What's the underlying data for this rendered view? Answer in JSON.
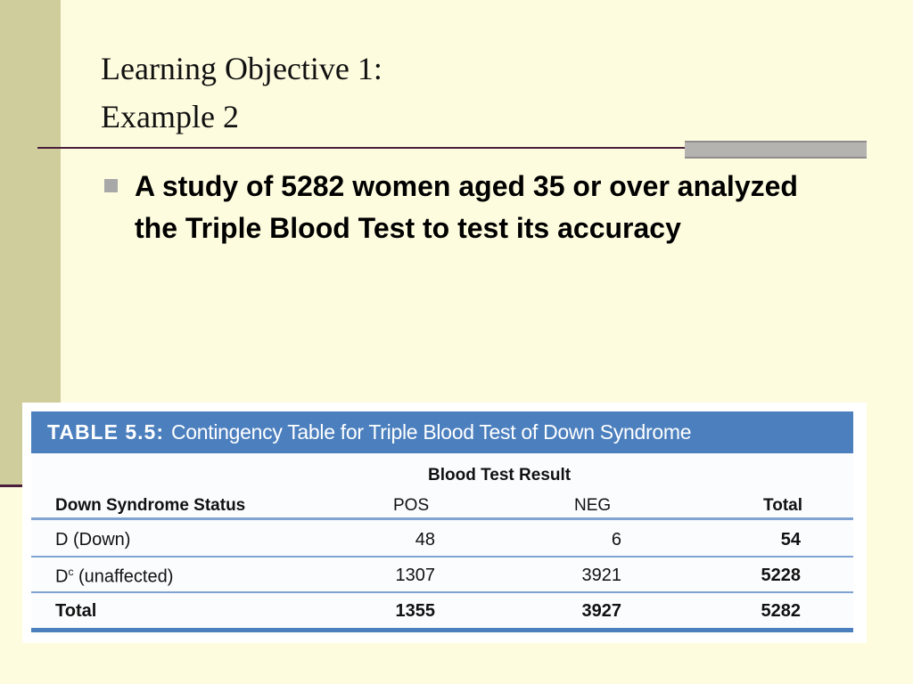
{
  "header": {
    "title": [
      "Learning Objective 1:",
      "Example 2"
    ]
  },
  "body": {
    "bullet": "A study of 5282 women aged 35 or over analyzed the Triple Blood Test to test its accuracy"
  },
  "table": {
    "caption_label": "TABLE 5.5:",
    "caption": "Contingency Table for Triple Blood Test of Down Syndrome",
    "group_header": "Blood Test Result",
    "columns": [
      "Down Syndrome Status",
      "POS",
      "NEG",
      "Total"
    ],
    "rows": [
      [
        "D (Down)",
        48,
        6,
        54
      ],
      [
        {
          "base": "D",
          "sup": "c",
          "rest": "(unaffected)"
        },
        1307,
        3921,
        5228
      ],
      [
        "Total",
        1355,
        3927,
        5282
      ]
    ]
  }
}
